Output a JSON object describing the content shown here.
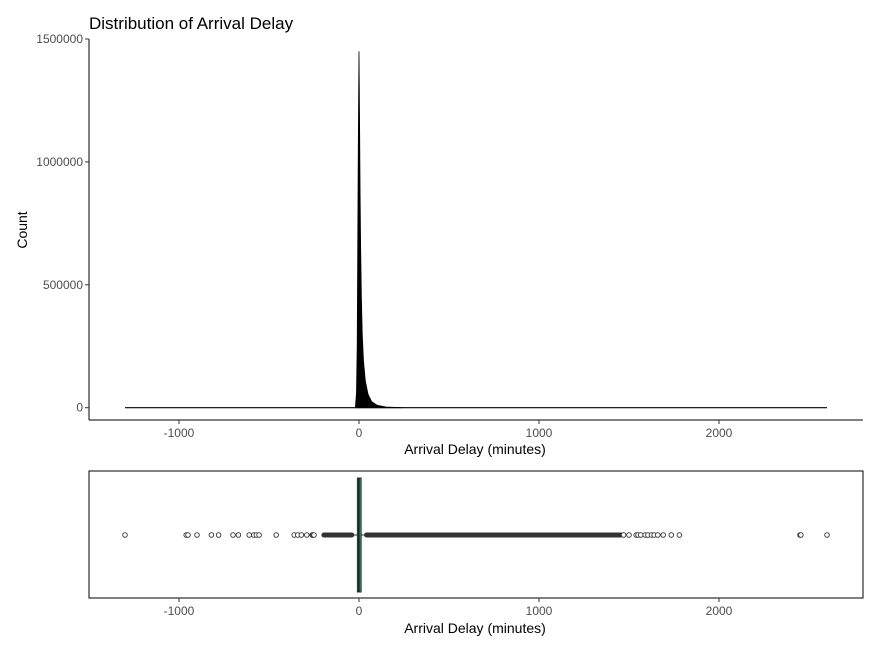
{
  "chart_data": [
    {
      "type": "histogram",
      "title": "Distribution of Arrival Delay",
      "xlabel": "Arrival Delay (minutes)",
      "ylabel": "Count",
      "xlim": [
        -1500,
        2800
      ],
      "ylim": [
        -50000,
        1500000
      ],
      "x_ticks": [
        -1000,
        0,
        1000,
        2000
      ],
      "y_ticks": [
        0,
        500000,
        1000000,
        1500000
      ],
      "x_tick_labels": [
        "-1000",
        "0",
        "1000",
        "2000"
      ],
      "y_tick_labels": [
        "0",
        "500000",
        "1000000",
        "1500000"
      ],
      "data_range": [
        -1300,
        2600
      ],
      "bar_color": "#000000",
      "grid": false,
      "bins": [
        {
          "x": -20,
          "count": 0
        },
        {
          "x": -14,
          "count": 60000
        },
        {
          "x": -10,
          "count": 250000
        },
        {
          "x": -7,
          "count": 650000
        },
        {
          "x": -4,
          "count": 1050000
        },
        {
          "x": -2,
          "count": 1280000
        },
        {
          "x": 0,
          "count": 1450000
        },
        {
          "x": 3,
          "count": 1180000
        },
        {
          "x": 6,
          "count": 880000
        },
        {
          "x": 9,
          "count": 660000
        },
        {
          "x": 13,
          "count": 460000
        },
        {
          "x": 18,
          "count": 300000
        },
        {
          "x": 25,
          "count": 190000
        },
        {
          "x": 35,
          "count": 110000
        },
        {
          "x": 50,
          "count": 55000
        },
        {
          "x": 70,
          "count": 25000
        },
        {
          "x": 100,
          "count": 10000
        },
        {
          "x": 150,
          "count": 3000
        },
        {
          "x": 240,
          "count": 0
        }
      ]
    },
    {
      "type": "boxplot",
      "xlabel": "Arrival Delay (minutes)",
      "xlim": [
        -1500,
        2800
      ],
      "x_ticks": [
        -1000,
        0,
        1000,
        2000
      ],
      "x_tick_labels": [
        "-1000",
        "0",
        "1000",
        "2000"
      ],
      "box": {
        "q1": -9,
        "median": -1,
        "q3": 12,
        "fill": "#1b9e77"
      },
      "whiskers": [
        -40,
        42
      ],
      "outlier_band_low": [
        -195,
        -40
      ],
      "outlier_band_high": [
        42,
        1455
      ],
      "outliers": [
        -1300,
        -960,
        -950,
        -900,
        -820,
        -780,
        -700,
        -670,
        -610,
        -585,
        -570,
        -555,
        -460,
        -360,
        -340,
        -320,
        -290,
        -260,
        -255,
        -250,
        1470,
        1500,
        1540,
        1550,
        1565,
        1590,
        1605,
        1625,
        1640,
        1660,
        1690,
        1735,
        1780,
        2450,
        2455,
        2600
      ],
      "grid": false
    }
  ]
}
